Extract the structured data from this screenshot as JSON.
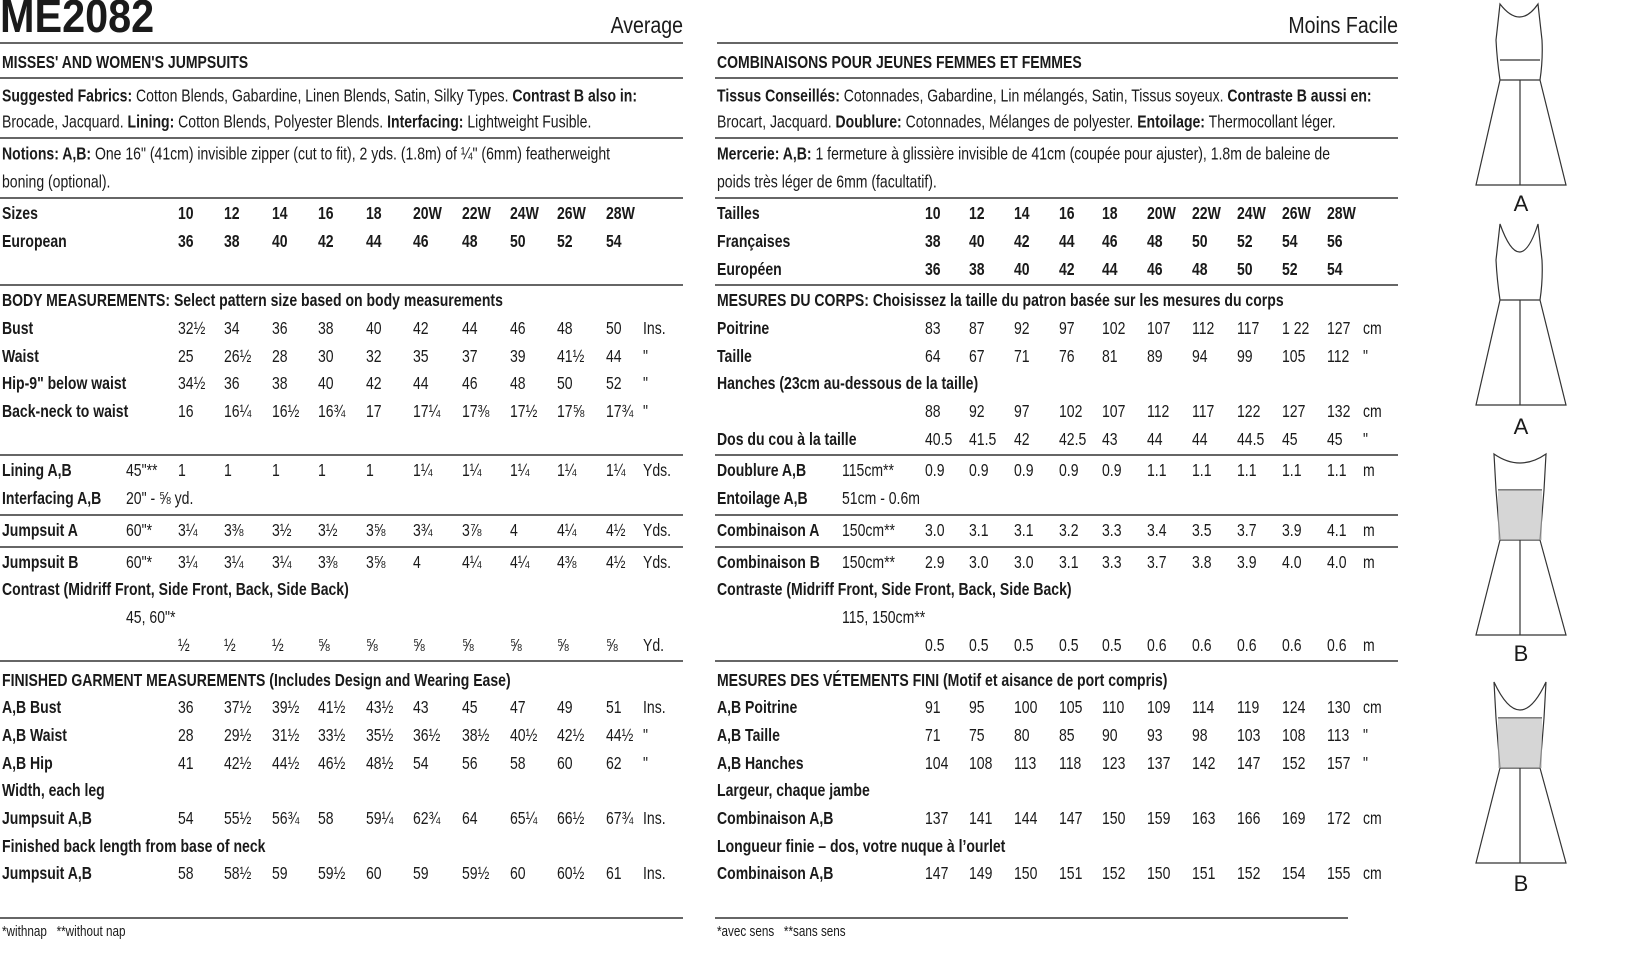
{
  "header": {
    "code": "ME2082",
    "level_en": "Average",
    "level_fr": "Moins Facile"
  },
  "english": {
    "rows": [
      {
        "heading": "MISSES' AND WOMEN'S JUMPSUITS"
      },
      {
        "segments": [
          {
            "text": "Suggested Fabrics:",
            "bold": true
          },
          {
            "text": " Cotton Blends, Gabardine, Linen Blends, Satin, Silky Types. "
          },
          {
            "text": "Contrast B also in:",
            "bold": true
          }
        ]
      },
      {
        "segments": [
          {
            "text": "Brocade, Jacquard. "
          },
          {
            "text": "Lining:",
            "bold": true
          },
          {
            "text": " Cotton Blends, Polyester Blends. "
          },
          {
            "text": "Interfacing:",
            "bold": true
          },
          {
            "text": " Lightweight Fusible."
          }
        ]
      },
      {
        "segments": [
          {
            "text": "Notions: A,B:",
            "bold": true
          },
          {
            "text": " One 16\" (41cm) invisible zipper (cut to fit), 2 yds. (1.8m) of ¼\" (6mm) featherweight"
          }
        ]
      },
      {
        "segments": [
          {
            "text": "boning (optional)."
          }
        ]
      },
      {
        "label": "Sizes",
        "bold_values": true,
        "values": [
          "10",
          "12",
          "14",
          "16",
          "18",
          "20W",
          "22W",
          "24W",
          "26W",
          "28W"
        ]
      },
      {
        "label": "European",
        "bold_values": true,
        "values": [
          "36",
          "38",
          "40",
          "42",
          "44",
          "46",
          "48",
          "50",
          "52",
          "54"
        ]
      },
      {
        "heading": "BODY MEASUREMENTS: Select pattern size based on body measurements"
      },
      {
        "label": "Bust",
        "values": [
          "32½",
          "34",
          "36",
          "38",
          "40",
          "42",
          "44",
          "46",
          "48",
          "50"
        ],
        "unit": "Ins."
      },
      {
        "label": "Waist",
        "values": [
          "25",
          "26½",
          "28",
          "30",
          "32",
          "35",
          "37",
          "39",
          "41½",
          "44"
        ],
        "unit": "\""
      },
      {
        "label": "Hip-9\" below waist",
        "values": [
          "34½",
          "36",
          "38",
          "40",
          "42",
          "44",
          "46",
          "48",
          "50",
          "52"
        ],
        "unit": "\""
      },
      {
        "label": "Back-neck to waist",
        "values": [
          "16",
          "16¼",
          "16½",
          "16¾",
          "17",
          "17¼",
          "17⅜",
          "17½",
          "17⅝",
          "17¾"
        ],
        "unit": "\""
      },
      {
        "label": "Lining A,B",
        "extra": "45\"**",
        "values": [
          "1",
          "1",
          "1",
          "1",
          "1",
          "1¼",
          "1¼",
          "1¼",
          "1¼",
          "1¼"
        ],
        "unit": "Yds."
      },
      {
        "label": "Interfacing A,B",
        "extra": "20\" - ⅝ yd."
      },
      {
        "label": "Jumpsuit A",
        "extra": "60\"*",
        "values": [
          "3¼",
          "3⅜",
          "3½",
          "3½",
          "3⅝",
          "3¾",
          "3⅞",
          "4",
          "4¼",
          "4½"
        ],
        "unit": "Yds."
      },
      {
        "label": "Jumpsuit B",
        "extra": "60\"*",
        "values": [
          "3¼",
          "3¼",
          "3¼",
          "3⅜",
          "3⅝",
          "4",
          "4¼",
          "4¼",
          "4⅜",
          "4½"
        ],
        "unit": "Yds."
      },
      {
        "heading": "Contrast (Midriff Front, Side Front, Back, Side Back)"
      },
      {
        "extra": "45, 60\"*"
      },
      {
        "values": [
          "½",
          "½",
          "½",
          "⅝",
          "⅝",
          "⅝",
          "⅝",
          "⅝",
          "⅝",
          "⅝"
        ],
        "unit": "Yd."
      },
      {
        "heading": "FINISHED GARMENT MEASUREMENTS (Includes Design and Wearing Ease)"
      },
      {
        "label": "A,B Bust",
        "values": [
          "36",
          "37½",
          "39½",
          "41½",
          "43½",
          "43",
          "45",
          "47",
          "49",
          "51"
        ],
        "unit": "Ins."
      },
      {
        "label": "A,B Waist",
        "values": [
          "28",
          "29½",
          "31½",
          "33½",
          "35½",
          "36½",
          "38½",
          "40½",
          "42½",
          "44½"
        ],
        "unit": "\""
      },
      {
        "label": "A,B Hip",
        "values": [
          "41",
          "42½",
          "44½",
          "46½",
          "48½",
          "54",
          "56",
          "58",
          "60",
          "62"
        ],
        "unit": "\""
      },
      {
        "heading": "Width, each leg"
      },
      {
        "label": "Jumpsuit A,B",
        "values": [
          "54",
          "55½",
          "56¾",
          "58",
          "59¼",
          "62¾",
          "64",
          "65¼",
          "66½",
          "67¾"
        ],
        "unit": "Ins."
      },
      {
        "heading": "Finished back length from base of neck"
      },
      {
        "label": "Jumpsuit A,B",
        "values": [
          "58",
          "58½",
          "59",
          "59½",
          "60",
          "59",
          "59½",
          "60",
          "60½",
          "61"
        ],
        "unit": "Ins."
      }
    ],
    "footnote": "*withnap   **without nap"
  },
  "french": {
    "rows": [
      {
        "heading": "COMBINAISONS POUR JEUNES FEMMES ET FEMMES"
      },
      {
        "segments": [
          {
            "text": "Tissus Conseillés:",
            "bold": true
          },
          {
            "text": " Cotonnades, Gabardine, Lin mélangés, Satin, Tissus soyeux. "
          },
          {
            "text": "Contraste B aussi en:",
            "bold": true
          }
        ]
      },
      {
        "segments": [
          {
            "text": "Brocart, Jacquard. "
          },
          {
            "text": "Doublure:",
            "bold": true
          },
          {
            "text": " Cotonnades, Mélanges de polyester. "
          },
          {
            "text": "Entoilage:",
            "bold": true
          },
          {
            "text": " Thermocollant léger."
          }
        ]
      },
      {
        "segments": [
          {
            "text": "Mercerie: A,B:",
            "bold": true
          },
          {
            "text": " 1 fermeture à glissière invisible de 41cm (coupée pour ajuster), 1.8m de baleine de"
          }
        ]
      },
      {
        "segments": [
          {
            "text": "poids très léger de 6mm (facultatif)."
          }
        ]
      },
      {
        "label": "Tailles",
        "bold_values": true,
        "values": [
          "10",
          "12",
          "14",
          "16",
          "18",
          "20W",
          "22W",
          "24W",
          "26W",
          "28W"
        ]
      },
      {
        "label": "Françaises",
        "bold_values": true,
        "values": [
          "38",
          "40",
          "42",
          "44",
          "46",
          "48",
          "50",
          "52",
          "54",
          "56"
        ]
      },
      {
        "label": "Européen",
        "bold_values": true,
        "values": [
          "36",
          "38",
          "40",
          "42",
          "44",
          "46",
          "48",
          "50",
          "52",
          "54"
        ]
      },
      {
        "heading": "MESURES DU CORPS: Choisissez la taille du patron basée sur les mesures du corps"
      },
      {
        "label": "Poitrine",
        "values": [
          "83",
          "87",
          "92",
          "97",
          "102",
          "107",
          "112",
          "117",
          "1 22",
          "127"
        ],
        "unit": "cm"
      },
      {
        "label": "Taille",
        "values": [
          "64",
          "67",
          "71",
          "76",
          "81",
          "89",
          "94",
          "99",
          "105",
          "112"
        ],
        "unit": "\""
      },
      {
        "heading": "Hanches (23cm au-dessous de la taille)"
      },
      {
        "values": [
          "88",
          "92",
          "97",
          "102",
          "107",
          "112",
          "117",
          "122",
          "127",
          "132"
        ],
        "unit": "cm"
      },
      {
        "label": "Dos du cou à la taille",
        "values": [
          "40.5",
          "41.5",
          "42",
          "42.5",
          "43",
          "44",
          "44",
          "44.5",
          "45",
          "45"
        ],
        "unit": "\""
      },
      {
        "label": "Doublure A,B",
        "extra": "115cm**",
        "values": [
          "0.9",
          "0.9",
          "0.9",
          "0.9",
          "0.9",
          "1.1",
          "1.1",
          "1.1",
          "1.1",
          "1.1"
        ],
        "unit": "m"
      },
      {
        "label": "Entoilage A,B",
        "extra": "51cm - 0.6m"
      },
      {
        "label": "Combinaison A",
        "extra": "150cm**",
        "values": [
          "3.0",
          "3.1",
          "3.1",
          "3.2",
          "3.3",
          "3.4",
          "3.5",
          "3.7",
          "3.9",
          "4.1"
        ],
        "unit": "m"
      },
      {
        "label": "Combinaison B",
        "extra": "150cm**",
        "values": [
          "2.9",
          "3.0",
          "3.0",
          "3.1",
          "3.3",
          "3.7",
          "3.8",
          "3.9",
          "4.0",
          "4.0"
        ],
        "unit": "m"
      },
      {
        "heading": "Contraste (Midriff Front, Side Front, Back, Side Back)"
      },
      {
        "extra": "115, 150cm**"
      },
      {
        "values": [
          "0.5",
          "0.5",
          "0.5",
          "0.5",
          "0.5",
          "0.6",
          "0.6",
          "0.6",
          "0.6",
          "0.6"
        ],
        "unit": "m"
      },
      {
        "heading": "MESURES DES VÉTEMENTS FINI (Motif et aisance de port compris)"
      },
      {
        "label": "A,B Poitrine",
        "values": [
          "91",
          "95",
          "100",
          "105",
          "110",
          "109",
          "114",
          "119",
          "124",
          "130"
        ],
        "unit": "cm"
      },
      {
        "label": "A,B Taille",
        "values": [
          "71",
          "75",
          "80",
          "85",
          "90",
          "93",
          "98",
          "103",
          "108",
          "113"
        ],
        "unit": "\""
      },
      {
        "label": "A,B Hanches",
        "values": [
          "104",
          "108",
          "113",
          "118",
          "123",
          "137",
          "142",
          "147",
          "152",
          "157"
        ],
        "unit": "\""
      },
      {
        "heading": "Largeur, chaque jambe"
      },
      {
        "label": "Combinaison A,B",
        "values": [
          "137",
          "141",
          "144",
          "147",
          "150",
          "159",
          "163",
          "166",
          "169",
          "172"
        ],
        "unit": "cm"
      },
      {
        "heading": "Longueur finie – dos, votre nuque à l’ourlet"
      },
      {
        "label": "Combinaison A,B",
        "values": [
          "147",
          "149",
          "150",
          "151",
          "152",
          "150",
          "151",
          "152",
          "154",
          "155"
        ],
        "unit": "cm"
      }
    ],
    "footnote": "*avec sens   **sans sens"
  },
  "views": [
    "A",
    "A",
    "B",
    "B"
  ]
}
